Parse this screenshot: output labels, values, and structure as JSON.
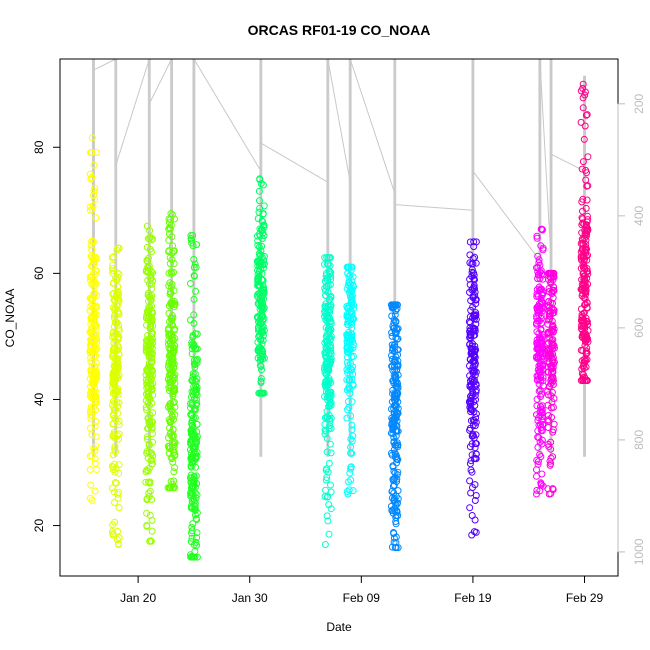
{
  "chart_data": {
    "type": "scatter",
    "title": "ORCAS RF01-19 CO_NOAA",
    "xlabel": "Date",
    "ylabel": "CO_NOAA",
    "x_axis": {
      "kind": "date",
      "range": [
        "2016-01-13",
        "2016-03-03"
      ],
      "tick_labels": [
        "Jan 20",
        "Jan 30",
        "Feb 09",
        "Feb 19",
        "Feb 29"
      ],
      "tick_dates": [
        "2016-01-20",
        "2016-01-30",
        "2016-02-09",
        "2016-02-19",
        "2016-02-29"
      ]
    },
    "y_axis": {
      "range": [
        12,
        94
      ],
      "ticks": [
        20,
        40,
        60,
        80
      ]
    },
    "y2_axis": {
      "label": "",
      "range": [
        1043,
        120
      ],
      "reversed": true,
      "ticks": [
        200,
        400,
        600,
        800,
        1000
      ],
      "color": "#bdbdbd"
    },
    "grid": false,
    "legend": "none",
    "series": [
      {
        "date": "2016-01-16",
        "color": "#ffff00",
        "min": 24,
        "max": 81.5,
        "center": 50,
        "spread": 8,
        "n": 200
      },
      {
        "date": "2016-01-18",
        "color": "#ddff00",
        "min": 17,
        "max": 64,
        "center": 46,
        "spread": 8,
        "n": 190
      },
      {
        "date": "2016-01-21",
        "color": "#99ff00",
        "min": 17.5,
        "max": 67.5,
        "center": 47,
        "spread": 9,
        "n": 210
      },
      {
        "date": "2016-01-23",
        "color": "#66ff00",
        "min": 26,
        "max": 69.5,
        "center": 45,
        "spread": 10,
        "n": 200
      },
      {
        "date": "2016-01-25",
        "color": "#22ff22",
        "min": 15,
        "max": 66,
        "center": 32,
        "spread": 10,
        "n": 210
      },
      {
        "date": "2016-01-31",
        "color": "#00ff66",
        "min": 41,
        "max": 75,
        "center": 55,
        "spread": 7,
        "n": 180
      },
      {
        "date": "2016-02-06",
        "color": "#00ffcc",
        "min": 17,
        "max": 62.5,
        "center": 47,
        "spread": 8,
        "n": 200
      },
      {
        "date": "2016-02-08",
        "color": "#00ffff",
        "min": 25,
        "max": 61,
        "center": 50,
        "spread": 6,
        "n": 150
      },
      {
        "date": "2016-02-12",
        "color": "#0088ff",
        "min": 16.5,
        "max": 55,
        "center": 40,
        "spread": 10,
        "n": 220
      },
      {
        "date": "2016-02-19",
        "color": "#5500ff",
        "min": 18.5,
        "max": 65,
        "center": 46,
        "spread": 9,
        "n": 190
      },
      {
        "date": "2016-02-25",
        "color": "#ff00ff",
        "min": 25,
        "max": 67,
        "center": 47,
        "spread": 8,
        "n": 190
      },
      {
        "date": "2016-02-26",
        "color": "#ff00dd",
        "min": 25,
        "max": 60,
        "center": 50,
        "spread": 6,
        "n": 150
      },
      {
        "date": "2016-02-29",
        "color": "#ff0088",
        "min": 43,
        "max": 90,
        "center": 57,
        "spread": 8,
        "n": 200
      }
    ],
    "altitude_trace": {
      "color": "#c8c8c8",
      "columns": [
        {
          "date": "2016-01-16",
          "top": 120,
          "bottom": 830
        },
        {
          "date": "2016-01-18",
          "top": 120,
          "bottom": 830
        },
        {
          "date": "2016-01-21",
          "top": 120,
          "bottom": 830
        },
        {
          "date": "2016-01-23",
          "top": 120,
          "bottom": 830
        },
        {
          "date": "2016-01-25",
          "top": 120,
          "bottom": 830
        },
        {
          "date": "2016-01-31",
          "top": 120,
          "bottom": 830
        },
        {
          "date": "2016-02-06",
          "top": 120,
          "bottom": 830
        },
        {
          "date": "2016-02-08",
          "top": 120,
          "bottom": 830
        },
        {
          "date": "2016-02-12",
          "top": 120,
          "bottom": 830
        },
        {
          "date": "2016-02-19",
          "top": 120,
          "bottom": 830
        },
        {
          "date": "2016-02-25",
          "top": 120,
          "bottom": 830
        },
        {
          "date": "2016-02-26",
          "top": 120,
          "bottom": 830
        },
        {
          "date": "2016-02-29",
          "top": 150,
          "bottom": 830
        }
      ],
      "connectors": [
        [
          [
            "2016-01-16",
            140
          ],
          [
            "2016-01-18",
            120
          ]
        ],
        [
          [
            "2016-01-18",
            310
          ],
          [
            "2016-01-21",
            120
          ]
        ],
        [
          [
            "2016-01-21",
            200
          ],
          [
            "2016-01-23",
            120
          ]
        ],
        [
          [
            "2016-01-23",
            120
          ],
          [
            "2016-01-25",
            120
          ]
        ],
        [
          [
            "2016-01-25",
            120
          ],
          [
            "2016-01-31",
            320
          ]
        ],
        [
          [
            "2016-01-31",
            270
          ],
          [
            "2016-02-06",
            340
          ]
        ],
        [
          [
            "2016-02-06",
            120
          ],
          [
            "2016-02-08",
            340
          ]
        ],
        [
          [
            "2016-02-08",
            120
          ],
          [
            "2016-02-12",
            360
          ]
        ],
        [
          [
            "2016-02-12",
            380
          ],
          [
            "2016-02-19",
            390
          ]
        ],
        [
          [
            "2016-02-19",
            320
          ],
          [
            "2016-02-25",
            480
          ]
        ],
        [
          [
            "2016-02-25",
            120
          ],
          [
            "2016-02-26",
            480
          ]
        ],
        [
          [
            "2016-02-26",
            290
          ],
          [
            "2016-02-29",
            320
          ]
        ]
      ]
    }
  }
}
